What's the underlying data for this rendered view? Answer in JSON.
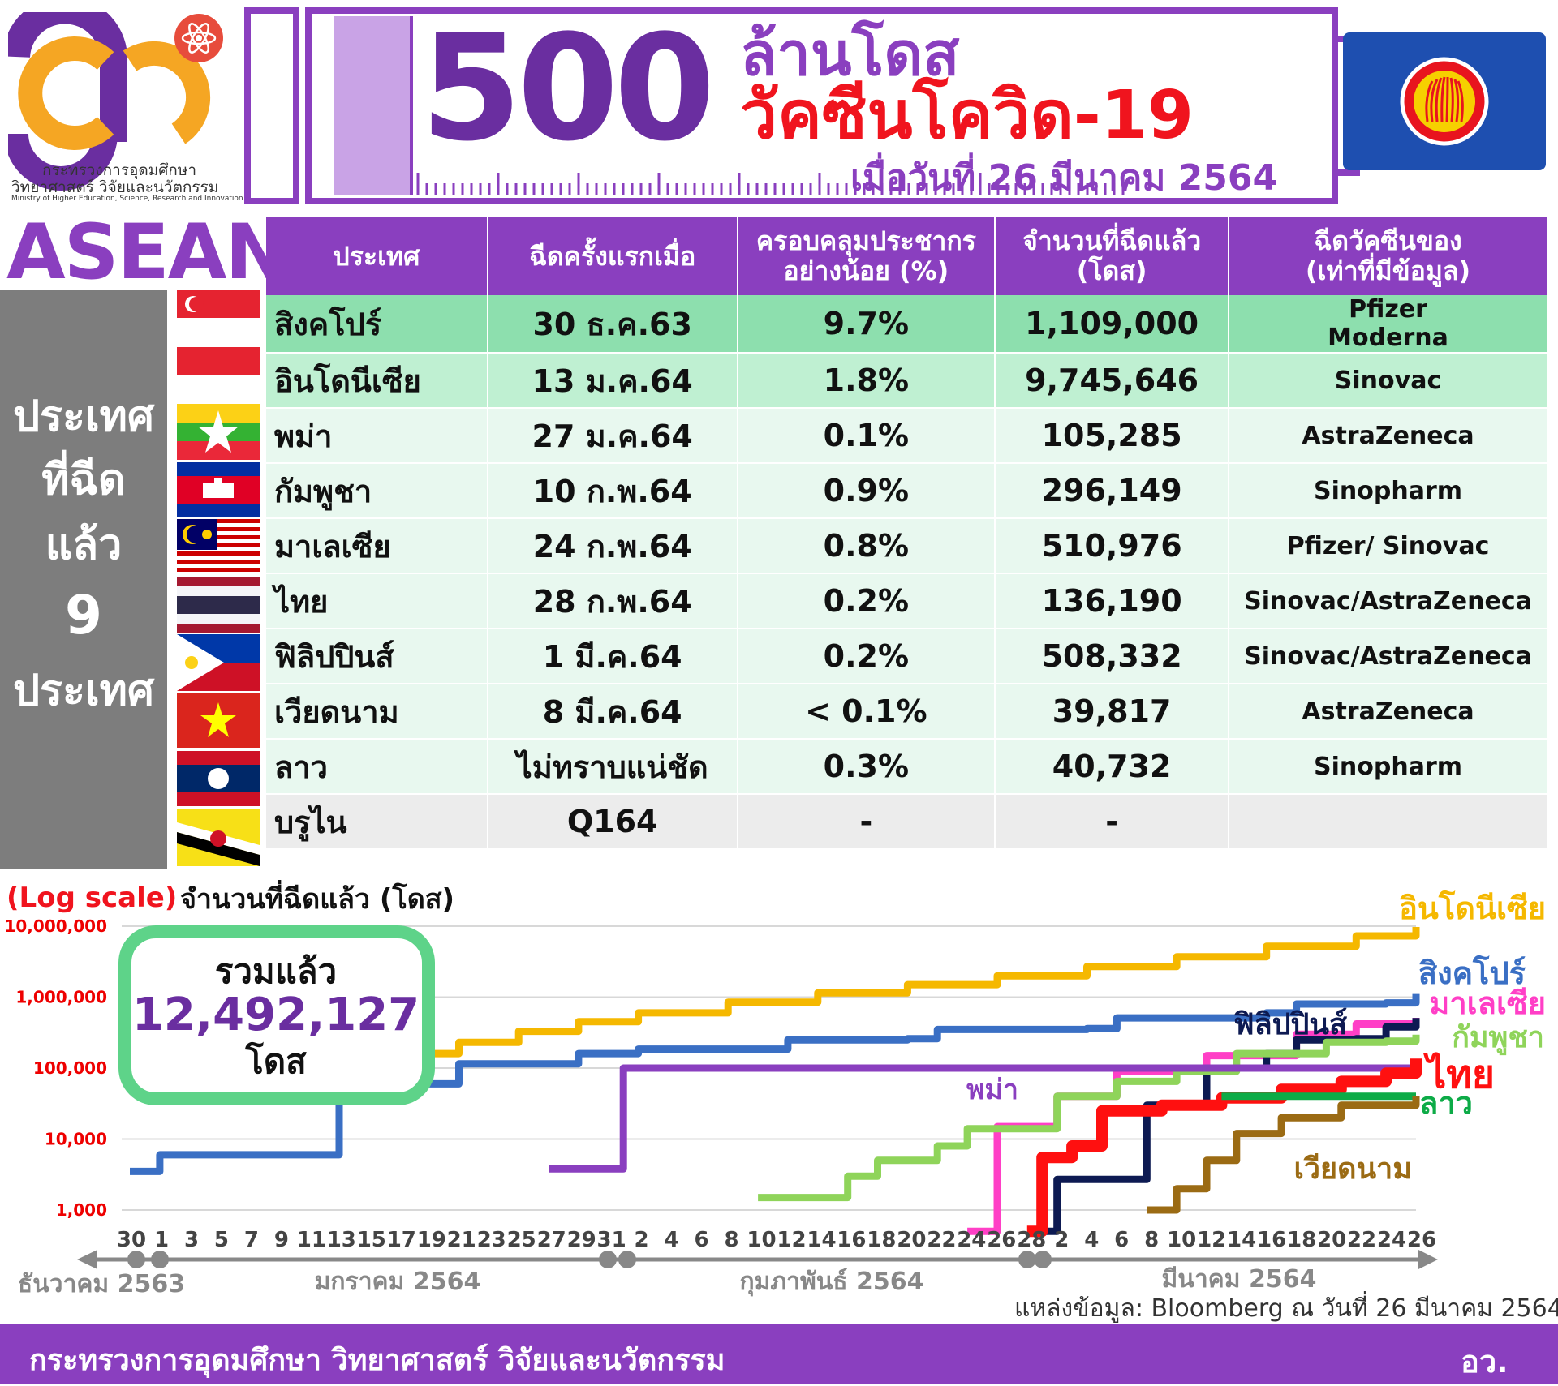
{
  "header": {
    "ministry_th_1": "กระทรวงการอุดมศึกษา",
    "ministry_th_2": "วิทยาศาสตร์ วิจัยและนวัตกรรม",
    "ministry_en": "Ministry of Higher Education, Science, Research and Innovation",
    "big_number": "500",
    "title_line1": "ล้านโดส",
    "title_line2": "วัคซีนโควิด-19",
    "date": "เมื่อวันที่ 26 มีนาคม 2564"
  },
  "asean_label": "ASEAN",
  "side_label": [
    "ประเทศ",
    "ที่ฉีด",
    "แล้ว",
    "9",
    "ประเทศ"
  ],
  "table": {
    "headers": [
      "ประเทศ",
      "ฉีดครั้งแรกเมื่อ",
      "ครอบคลุมประชากร\nอย่างน้อย (%)",
      "จำนวนที่ฉีดแล้ว\n(โดส)",
      "ฉีดวัคซีนของ\n(เท่าที่มีข้อมูล)"
    ],
    "rows": [
      {
        "country": "สิงคโปร์",
        "first": "30 ธ.ค.63",
        "coverage": "9.7%",
        "doses": "1,109,000",
        "vaccine": "Pfizer\nModerna",
        "flag": "singapore-flag"
      },
      {
        "country": "อินโดนีเซีย",
        "first": "13 ม.ค.64",
        "coverage": "1.8%",
        "doses": "9,745,646",
        "vaccine": "Sinovac",
        "flag": "indonesia-flag"
      },
      {
        "country": "พม่า",
        "first": "27 ม.ค.64",
        "coverage": "0.1%",
        "doses": "105,285",
        "vaccine": "AstraZeneca",
        "flag": "myanmar-flag"
      },
      {
        "country": "กัมพูชา",
        "first": "10 ก.พ.64",
        "coverage": "0.9%",
        "doses": "296,149",
        "vaccine": "Sinopharm",
        "flag": "cambodia-flag"
      },
      {
        "country": "มาเลเซีย",
        "first": "24 ก.พ.64",
        "coverage": "0.8%",
        "doses": "510,976",
        "vaccine": "Pfizer/ Sinovac",
        "flag": "malaysia-flag"
      },
      {
        "country": "ไทย",
        "first": "28 ก.พ.64",
        "coverage": "0.2%",
        "doses": "136,190",
        "vaccine": "Sinovac/AstraZeneca",
        "flag": "thailand-flag"
      },
      {
        "country": "ฟิลิปปินส์",
        "first": "1 มี.ค.64",
        "coverage": "0.2%",
        "doses": "508,332",
        "vaccine": "Sinovac/AstraZeneca",
        "flag": "philippines-flag"
      },
      {
        "country": "เวียดนาม",
        "first": "8 มี.ค.64",
        "coverage": "< 0.1%",
        "doses": "39,817",
        "vaccine": "AstraZeneca",
        "flag": "vietnam-flag"
      },
      {
        "country": "ลาว",
        "first": "ไม่ทราบแน่ชัด",
        "coverage": "0.3%",
        "doses": "40,732",
        "vaccine": "Sinopharm",
        "flag": "laos-flag"
      },
      {
        "country": "บรูไน",
        "first": "Q164",
        "coverage": "-",
        "doses": "-",
        "vaccine": "",
        "flag": "brunei-flag"
      }
    ]
  },
  "chart_data": {
    "type": "line",
    "scale_label": "(Log scale)",
    "title": "จำนวนที่ฉีดแล้ว (โดส)",
    "y_scale": "log",
    "ylim": [
      1000,
      10000000
    ],
    "y_ticks": [
      "1,000",
      "10,000",
      "100,000",
      "1,000,000",
      "10,000,000"
    ],
    "x_tick_labels": [
      "30",
      "1",
      "3",
      "5",
      "7",
      "9",
      "11",
      "13",
      "15",
      "17",
      "19",
      "21",
      "23",
      "25",
      "27",
      "29",
      "31",
      "2",
      "4",
      "6",
      "8",
      "10",
      "12",
      "14",
      "16",
      "18",
      "20",
      "22",
      "24",
      "26",
      "28",
      "2",
      "4",
      "6",
      "8",
      "10",
      "12",
      "14",
      "16",
      "18",
      "20",
      "22",
      "24",
      "26"
    ],
    "month_labels": [
      "ธันวาคม 2563",
      "มกราคม 2564",
      "กุมภาพันธ์ 2564",
      "มีนาคม 2564"
    ],
    "total_label": "รวมแล้ว",
    "total_value": "12,492,127",
    "total_unit": "โดส",
    "series": [
      {
        "name": "อินโดนีเซีย",
        "color": "#f5b800",
        "points": [
          [
            "2021-01-13",
            120000
          ],
          [
            "2021-01-15",
            125000
          ],
          [
            "2021-01-19",
            160000
          ],
          [
            "2021-01-21",
            230000
          ],
          [
            "2021-01-25",
            330000
          ],
          [
            "2021-01-29",
            450000
          ],
          [
            "2021-02-02",
            600000
          ],
          [
            "2021-02-08",
            850000
          ],
          [
            "2021-02-14",
            1150000
          ],
          [
            "2021-02-20",
            1500000
          ],
          [
            "2021-02-26",
            2000000
          ],
          [
            "2021-03-04",
            2700000
          ],
          [
            "2021-03-10",
            3700000
          ],
          [
            "2021-03-16",
            5200000
          ],
          [
            "2021-03-22",
            7300000
          ],
          [
            "2021-03-26",
            9745646
          ]
        ]
      },
      {
        "name": "สิงคโปร์",
        "color": "#3a6fc4",
        "points": [
          [
            "2020-12-30",
            3500
          ],
          [
            "2021-01-01",
            6000
          ],
          [
            "2021-01-11",
            6000
          ],
          [
            "2021-01-13",
            60000
          ],
          [
            "2021-01-19",
            60000
          ],
          [
            "2021-01-21",
            115000
          ],
          [
            "2021-01-27",
            115000
          ],
          [
            "2021-01-29",
            160000
          ],
          [
            "2021-02-02",
            185000
          ],
          [
            "2021-02-10",
            185000
          ],
          [
            "2021-02-12",
            250000
          ],
          [
            "2021-02-20",
            260000
          ],
          [
            "2021-02-22",
            350000
          ],
          [
            "2021-03-04",
            360000
          ],
          [
            "2021-03-06",
            510000
          ],
          [
            "2021-03-16",
            600000
          ],
          [
            "2021-03-18",
            800000
          ],
          [
            "2021-03-24",
            830000
          ],
          [
            "2021-03-26",
            1109000
          ]
        ]
      },
      {
        "name": "มาเลเซีย",
        "color": "#ff3fc6",
        "points": [
          [
            "2021-02-24",
            500
          ],
          [
            "2021-02-26",
            15000
          ],
          [
            "2021-03-02",
            40000
          ],
          [
            "2021-03-06",
            90000
          ],
          [
            "2021-03-12",
            150000
          ],
          [
            "2021-03-18",
            300000
          ],
          [
            "2021-03-22",
            420000
          ],
          [
            "2021-03-26",
            510976
          ]
        ]
      },
      {
        "name": "ฟิลิปปินส์",
        "color": "#0d1a52",
        "points": [
          [
            "2021-03-01",
            500
          ],
          [
            "2021-03-02",
            2700
          ],
          [
            "2021-03-07",
            2700
          ],
          [
            "2021-03-08",
            30000
          ],
          [
            "2021-03-10",
            30000
          ],
          [
            "2021-03-12",
            100000
          ],
          [
            "2021-03-16",
            160000
          ],
          [
            "2021-03-18",
            250000
          ],
          [
            "2021-03-22",
            260000
          ],
          [
            "2021-03-24",
            380000
          ],
          [
            "2021-03-26",
            508332
          ]
        ]
      },
      {
        "name": "กัมพูชา",
        "color": "#8fd45a",
        "points": [
          [
            "2021-02-10",
            1500
          ],
          [
            "2021-02-15",
            1500
          ],
          [
            "2021-02-16",
            3000
          ],
          [
            "2021-02-18",
            5000
          ],
          [
            "2021-02-20",
            5000
          ],
          [
            "2021-02-22",
            8000
          ],
          [
            "2021-02-24",
            14000
          ],
          [
            "2021-02-28",
            14000
          ],
          [
            "2021-03-02",
            40000
          ],
          [
            "2021-03-06",
            65000
          ],
          [
            "2021-03-10",
            90000
          ],
          [
            "2021-03-14",
            160000
          ],
          [
            "2021-03-20",
            230000
          ],
          [
            "2021-03-24",
            240000
          ],
          [
            "2021-03-26",
            296149
          ]
        ]
      },
      {
        "name": "พม่า",
        "color": "#8a3fbf",
        "points": [
          [
            "2021-01-27",
            3800
          ],
          [
            "2021-01-31",
            3800
          ],
          [
            "2021-02-01",
            100000
          ],
          [
            "2021-03-26",
            105285
          ]
        ]
      },
      {
        "name": "ไทย",
        "color": "#ff1010",
        "points": [
          [
            "2021-02-28",
            500
          ],
          [
            "2021-03-01",
            5500
          ],
          [
            "2021-03-03",
            8000
          ],
          [
            "2021-03-05",
            25000
          ],
          [
            "2021-03-09",
            30000
          ],
          [
            "2021-03-13",
            38000
          ],
          [
            "2021-03-17",
            50000
          ],
          [
            "2021-03-21",
            65000
          ],
          [
            "2021-03-24",
            85000
          ],
          [
            "2021-03-26",
            136190
          ]
        ]
      },
      {
        "name": "ลาว",
        "color": "#0dab47",
        "points": [
          [
            "2021-03-13",
            40000
          ],
          [
            "2021-03-26",
            40732
          ]
        ]
      },
      {
        "name": "เวียดนาม",
        "color": "#9b6b14",
        "points": [
          [
            "2021-03-08",
            1000
          ],
          [
            "2021-03-10",
            2000
          ],
          [
            "2021-03-12",
            5000
          ],
          [
            "2021-03-14",
            12000
          ],
          [
            "2021-03-17",
            20000
          ],
          [
            "2021-03-21",
            30000
          ],
          [
            "2021-03-26",
            39817
          ]
        ]
      }
    ]
  },
  "source": "แหล่งข้อมูล: Bloomberg ณ วันที่ 26 มีนาคม 2564",
  "footer": {
    "ministry": "กระทรวงการอุดมศึกษา วิทยาศาสตร์ วิจัยและนวัตกรรม",
    "logo_text": "อว."
  },
  "colors": {
    "purple": "#8a3fbf",
    "dark_purple": "#6a2ea0",
    "red": "#f0141e",
    "green_box": "#5ed389",
    "asean_blue": "#1e4fb0"
  }
}
